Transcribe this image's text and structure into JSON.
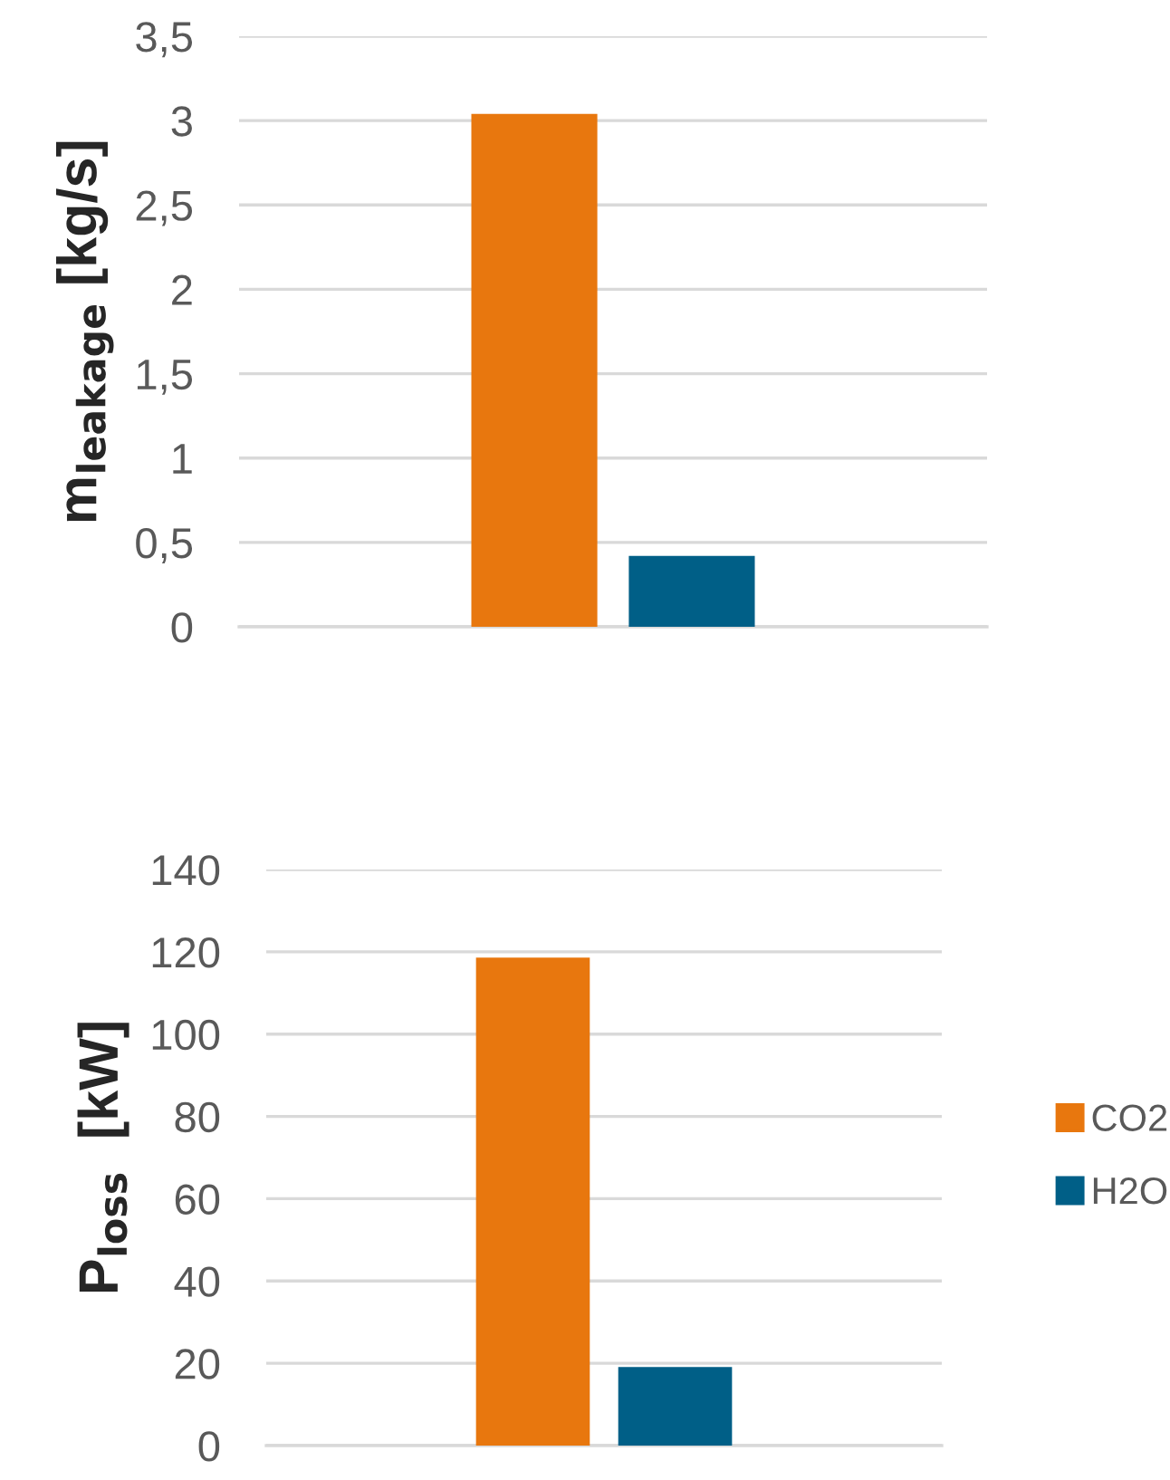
{
  "chart_data": [
    {
      "type": "bar",
      "ylabel": "m$_{leakage}$ [kg/s]",
      "categories": [
        null
      ],
      "series": [
        {
          "color": "#e8770e",
          "values": [
            3.04
          ]
        },
        {
          "color": "#005f87",
          "values": [
            0.42
          ]
        }
      ],
      "ylim": [
        0,
        3.5
      ],
      "yticks": [
        0,
        {
          "value": 0.5,
          "label": "0,5"
        },
        1,
        {
          "value": 1.5,
          "label": "1,5"
        },
        2,
        {
          "value": 2.5,
          "label": "2,5"
        },
        3,
        {
          "value": 3.5,
          "label": "3,5"
        }
      ],
      "grid": "y"
    },
    {
      "type": "bar",
      "ylabel": "P$_{loss}$  [kW]",
      "categories": [
        null
      ],
      "series": [
        {
          "name": "CO2",
          "color": "#e8770e",
          "values": [
            118.6
          ]
        },
        {
          "name": "H2O",
          "color": "#005f87",
          "values": [
            19.1
          ]
        }
      ],
      "ylim": [
        0,
        140
      ],
      "yticks": [
        0,
        20,
        40,
        60,
        80,
        100,
        120,
        140
      ],
      "grid": "y",
      "legend": "right"
    }
  ]
}
